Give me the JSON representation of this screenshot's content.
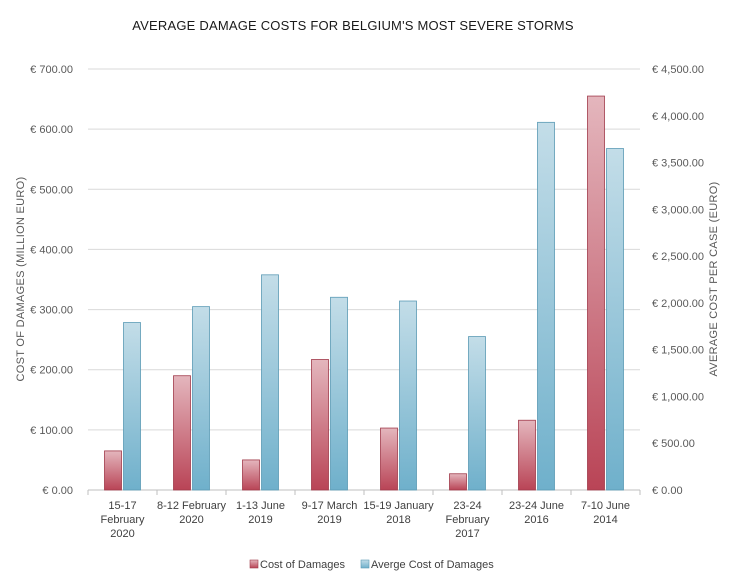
{
  "chart_data": {
    "type": "bar",
    "title": "AVERAGE DAMAGE COSTS FOR BELGIUM'S MOST SEVERE STORMS",
    "ylabel": "COST OF DAMAGES (MILLION EURO)",
    "y2label": "AVERAGE COST PER CASE (EURO)",
    "categories": [
      [
        "15-17",
        "February",
        "2020"
      ],
      [
        "8-12 February",
        "2020"
      ],
      [
        "1-13 June",
        "2019"
      ],
      [
        "9-17 March",
        "2019"
      ],
      [
        "15-19 January",
        "2018"
      ],
      [
        "23-24",
        "February",
        "2017"
      ],
      [
        "23-24 June",
        "2016"
      ],
      [
        "7-10 June",
        "2014"
      ]
    ],
    "ylim": [
      0,
      700
    ],
    "y2lim": [
      0,
      4500
    ],
    "yticks": [
      "€ 0.00",
      "€ 100.00",
      "€ 200.00",
      "€ 300.00",
      "€ 400.00",
      "€ 500.00",
      "€ 600.00",
      "€ 700.00"
    ],
    "y2ticks": [
      "€ 0.00",
      "€ 500.00",
      "€ 1,000.00",
      "€ 1,500.00",
      "€ 2,000.00",
      "€ 2,500.00",
      "€ 3,000.00",
      "€ 3,500.00",
      "€ 4,000.00",
      "€ 4,500.00"
    ],
    "grid": true,
    "legend_position": "bottom",
    "series": [
      {
        "name": "Cost of Damages",
        "axis": "left",
        "color": "#c0505f",
        "values": [
          65,
          190,
          50,
          217,
          103,
          27,
          116,
          655
        ]
      },
      {
        "name": "Averge Cost of Damages",
        "axis": "right",
        "color": "#7ab8d0",
        "values": [
          1790,
          1960,
          2300,
          2060,
          2020,
          1640,
          3930,
          3650
        ]
      }
    ]
  }
}
